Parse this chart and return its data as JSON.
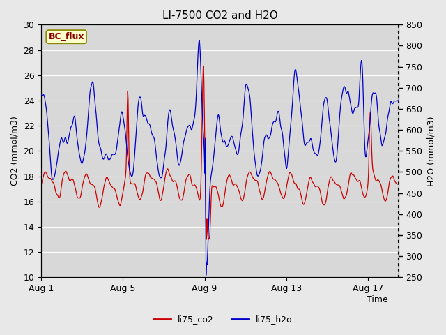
{
  "title": "LI-7500 CO2 and H2O",
  "xlabel": "Time",
  "ylabel_left": "CO2 (mmol/m3)",
  "ylabel_right": "H2O (mmol/m3)",
  "ylim_left": [
    10,
    30
  ],
  "ylim_right": [
    250,
    850
  ],
  "yticks_left": [
    10,
    12,
    14,
    16,
    18,
    20,
    22,
    24,
    26,
    28,
    30
  ],
  "yticks_right": [
    250,
    300,
    350,
    400,
    450,
    500,
    550,
    600,
    650,
    700,
    750,
    800,
    850
  ],
  "xtick_labels": [
    "Aug 1",
    "Aug 5",
    "Aug 9",
    "Aug 13",
    "Aug 17"
  ],
  "xtick_positions": [
    0,
    4,
    8,
    12,
    16
  ],
  "xlim": [
    0,
    17.5
  ],
  "legend_labels": [
    "li75_co2",
    "li75_h2o"
  ],
  "legend_colors": [
    "#cc0000",
    "#0000cc"
  ],
  "line_co2_color": "#cc0000",
  "line_h2o_color": "#0000cc",
  "fig_bg_color": "#e8e8e8",
  "plot_bg_color": "#d8d8d8",
  "grid_color": "#ffffff",
  "annotation_text": "BC_flux",
  "annotation_color": "#880000",
  "annotation_bg": "#ffffcc",
  "annotation_edge": "#888800",
  "title_fontsize": 11,
  "axis_label_fontsize": 9,
  "tick_fontsize": 9,
  "line_width": 0.9
}
